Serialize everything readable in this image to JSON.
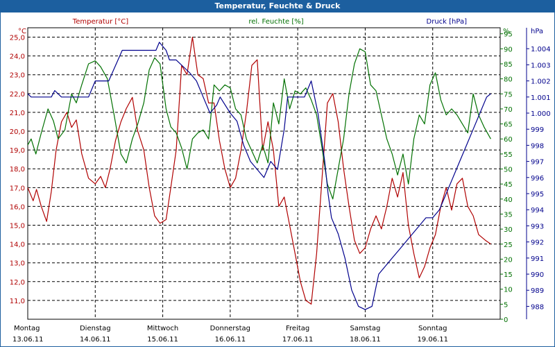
{
  "window": {
    "title": "Temperatur, Feuchte & Druck"
  },
  "colors": {
    "temperature": "#b00000",
    "humidity": "#007000",
    "pressure": "#00008c",
    "grid": "#000000",
    "frame": "#1c5f9f"
  },
  "chart_data": {
    "type": "line",
    "title": "Temperatur, Feuchte & Druck",
    "legend": [
      "Temperatur [°C]",
      "rel. Feuchte [%]",
      "Druck [hPa]"
    ],
    "x_categories": [
      {
        "day": "Montag",
        "date": "13.06.11"
      },
      {
        "day": "Dienstag",
        "date": "14.06.11"
      },
      {
        "day": "Mittwoch",
        "date": "15.06.11"
      },
      {
        "day": "Donnerstag",
        "date": "16.06.11"
      },
      {
        "day": "Freitag",
        "date": "17.06.11"
      },
      {
        "day": "Samstag",
        "date": "18.06.11"
      },
      {
        "day": "Sonntag",
        "date": "19.06.11"
      }
    ],
    "xlim": [
      0,
      7
    ],
    "axes": {
      "temperature": {
        "unit": "°C",
        "ylim": [
          10,
          25.5
        ],
        "ticks": [
          "25,0",
          "24,0",
          "23,0",
          "22,0",
          "21,0",
          "20,0",
          "19,0",
          "18,0",
          "17,0",
          "16,0",
          "15,0",
          "14,0",
          "13,0",
          "12,0",
          "11,0"
        ]
      },
      "humidity": {
        "unit": "%",
        "ylim": [
          0,
          97
        ],
        "ticks": [
          "95",
          "90",
          "85",
          "80",
          "75",
          "70",
          "65",
          "60",
          "55",
          "50",
          "45",
          "40",
          "35",
          "30",
          "25",
          "20",
          "15",
          "10",
          "5",
          "0"
        ]
      },
      "pressure": {
        "unit": "hPa",
        "ylim": [
          987.2,
          1005.3
        ],
        "ticks": [
          "1.004",
          "1.003",
          "1.002",
          "1.001",
          "1.000",
          "999",
          "998",
          "997",
          "996",
          "995",
          "994",
          "993",
          "992",
          "991",
          "990",
          "989",
          "988"
        ]
      }
    },
    "series": [
      {
        "name": "Temperatur [°C]",
        "axis": "temperature",
        "x": [
          0,
          0.08,
          0.13,
          0.2,
          0.28,
          0.35,
          0.42,
          0.5,
          0.58,
          0.65,
          0.72,
          0.8,
          0.9,
          1.0,
          1.08,
          1.15,
          1.22,
          1.3,
          1.38,
          1.46,
          1.55,
          1.63,
          1.72,
          1.8,
          1.88,
          1.96,
          2.05,
          2.12,
          2.2,
          2.28,
          2.36,
          2.44,
          2.52,
          2.6,
          2.68,
          2.76,
          2.84,
          2.92,
          3.0,
          3.08,
          3.16,
          3.24,
          3.32,
          3.4,
          3.48,
          3.56,
          3.64,
          3.72,
          3.8,
          3.88,
          3.96,
          4.04,
          4.12,
          4.2,
          4.28,
          4.36,
          4.44,
          4.52,
          4.6,
          4.68,
          4.76,
          4.84,
          4.92,
          5.0,
          5.08,
          5.16,
          5.24,
          5.32,
          5.4,
          5.48,
          5.56,
          5.64,
          5.72,
          5.8,
          5.88,
          5.96,
          6.04,
          6.12,
          6.2,
          6.28,
          6.36,
          6.44,
          6.52,
          6.6,
          6.68,
          6.78,
          6.86
        ],
        "y": [
          17.0,
          16.3,
          16.9,
          16.0,
          15.2,
          16.8,
          19.0,
          20.5,
          21.0,
          20.2,
          20.6,
          18.8,
          17.5,
          17.2,
          17.6,
          17.0,
          18.0,
          19.5,
          20.5,
          21.2,
          21.8,
          20.0,
          19.0,
          17.0,
          15.5,
          15.1,
          15.3,
          17.0,
          19.0,
          23.5,
          23.0,
          25.0,
          23.0,
          22.8,
          21.5,
          21.5,
          19.5,
          18.0,
          17.0,
          17.5,
          19.0,
          21.0,
          23.5,
          23.8,
          19.0,
          20.5,
          19.0,
          16.0,
          16.5,
          15.0,
          13.5,
          12.0,
          11.0,
          10.8,
          13.5,
          17.5,
          21.5,
          22.0,
          20.5,
          18.0,
          16.0,
          14.2,
          13.5,
          13.8,
          14.8,
          15.5,
          14.8,
          16.0,
          17.5,
          16.5,
          17.8,
          15.0,
          13.5,
          12.2,
          12.8,
          13.8,
          14.5,
          16.0,
          17.0,
          15.8,
          17.2,
          17.5,
          16.0,
          15.5,
          14.5,
          14.2,
          14.0
        ]
      },
      {
        "name": "rel. Feuchte [%]",
        "axis": "humidity",
        "x": [
          0,
          0.05,
          0.12,
          0.2,
          0.3,
          0.38,
          0.45,
          0.55,
          0.65,
          0.72,
          0.8,
          0.9,
          1.0,
          1.08,
          1.18,
          1.28,
          1.38,
          1.46,
          1.55,
          1.63,
          1.72,
          1.8,
          1.88,
          1.96,
          2.05,
          2.12,
          2.2,
          2.28,
          2.36,
          2.44,
          2.52,
          2.6,
          2.68,
          2.76,
          2.84,
          2.92,
          3.0,
          3.08,
          3.16,
          3.24,
          3.32,
          3.4,
          3.48,
          3.56,
          3.64,
          3.72,
          3.8,
          3.88,
          3.96,
          4.04,
          4.12,
          4.2,
          4.28,
          4.36,
          4.44,
          4.52,
          4.6,
          4.68,
          4.76,
          4.84,
          4.92,
          5.0,
          5.08,
          5.16,
          5.24,
          5.32,
          5.4,
          5.48,
          5.56,
          5.64,
          5.72,
          5.8,
          5.88,
          5.96,
          6.04,
          6.12,
          6.2,
          6.28,
          6.36,
          6.44,
          6.52,
          6.6,
          6.68,
          6.76,
          6.86
        ],
        "y": [
          58,
          60,
          55,
          62,
          70,
          66,
          60,
          63,
          75,
          72,
          78,
          85,
          86,
          84,
          80,
          68,
          55,
          52,
          60,
          65,
          72,
          83,
          87,
          85,
          70,
          64,
          62,
          57,
          50,
          60,
          62,
          63,
          60,
          78,
          76,
          78,
          77,
          70,
          68,
          60,
          56,
          52,
          58,
          52,
          72,
          65,
          80,
          70,
          76,
          75,
          77,
          73,
          68,
          57,
          45,
          40,
          50,
          60,
          75,
          85,
          90,
          89,
          78,
          76,
          68,
          60,
          55,
          48,
          55,
          45,
          60,
          68,
          65,
          78,
          82,
          73,
          68,
          70,
          68,
          65,
          62,
          75,
          68,
          64,
          60
        ]
      },
      {
        "name": "Druck [hPa]",
        "axis": "pressure",
        "x": [
          0,
          0.05,
          0.2,
          0.35,
          0.4,
          0.5,
          0.7,
          0.9,
          1.0,
          1.2,
          1.4,
          1.5,
          1.7,
          1.9,
          1.95,
          2.05,
          2.1,
          2.2,
          2.4,
          2.5,
          2.6,
          2.7,
          2.8,
          2.85,
          3.0,
          3.1,
          3.2,
          3.3,
          3.4,
          3.5,
          3.6,
          3.7,
          3.8,
          3.85,
          3.9,
          4.0,
          4.1,
          4.2,
          4.3,
          4.4,
          4.45,
          4.5,
          4.6,
          4.7,
          4.8,
          4.9,
          5.0,
          5.1,
          5.15,
          5.2,
          5.3,
          5.4,
          5.5,
          5.6,
          5.7,
          5.8,
          5.9,
          6.0,
          6.1,
          6.2,
          6.3,
          6.4,
          6.5,
          6.6,
          6.7,
          6.8,
          6.86
        ],
        "y": [
          1001.2,
          1001.0,
          1001.0,
          1001.0,
          1001.4,
          1001.0,
          1001.0,
          1001.0,
          1002.0,
          1002.0,
          1003.9,
          1003.9,
          1003.9,
          1003.9,
          1004.4,
          1003.9,
          1003.3,
          1003.3,
          1002.5,
          1002.0,
          1001.0,
          1000.0,
          1000.5,
          1001.0,
          1000.0,
          999.5,
          998.0,
          997.0,
          996.5,
          996.0,
          997.0,
          996.5,
          999.0,
          1001.0,
          1001.0,
          1001.0,
          1001.0,
          1002.0,
          1000.0,
          997.0,
          995.0,
          993.5,
          992.5,
          991.0,
          989.0,
          988.0,
          987.8,
          988.0,
          989.0,
          990.0,
          990.5,
          991.0,
          991.5,
          992.0,
          992.5,
          993.0,
          993.5,
          993.5,
          994.0,
          995.0,
          996.0,
          997.0,
          998.0,
          999.0,
          1000.0,
          1001.0,
          1001.2
        ]
      }
    ]
  }
}
